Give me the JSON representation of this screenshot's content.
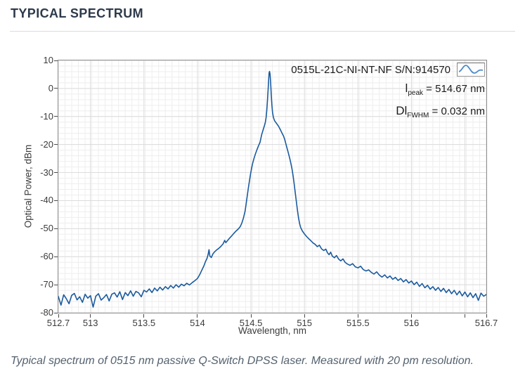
{
  "page": {
    "title": "TYPICAL SPECTRUM",
    "caption": "Typical spectrum of 0515 nm passive Q-Switch DPSS laser. Measured with 20 pm resolution."
  },
  "annotation": {
    "model_line": "0515L-21C-NI-NT-NF  S/N:914570",
    "peak": {
      "symbol": "l",
      "sub": "peak",
      "rest": " = 514.67 nm"
    },
    "fwhm": {
      "symbol": "Dl",
      "sub": "FWHM",
      "rest": " = 0.032 nm"
    },
    "legend_icon": "spectrum-curve-icon"
  },
  "colors": {
    "curve": "#1a5a9e",
    "legend_stroke": "#4f8cc9",
    "grid_minor": "#eeeeee",
    "grid_major": "#dcdcdc",
    "plot_border": "#8e8e8e",
    "title_text": "#2d3a4b",
    "caption_text": "#53616e",
    "tick_text": "#3b3b3b"
  },
  "chart_data": {
    "type": "line",
    "title": "0515L-21C-NI-NT-NF S/N:914570",
    "xlabel": "Wavelength, nm",
    "ylabel": "Optical Power, dBm",
    "xlim": [
      512.7,
      516.7
    ],
    "ylim": [
      -80,
      10
    ],
    "grid": true,
    "legend_position": "top-right",
    "x_minor_step": 0.0625,
    "y_minor_step": 2,
    "x_ticks": [
      {
        "v": 512.7,
        "label": "512.7"
      },
      {
        "v": 513.0,
        "label": "513"
      },
      {
        "v": 513.5,
        "label": "513.5"
      },
      {
        "v": 514.0,
        "label": "514"
      },
      {
        "v": 514.5,
        "label": "514.5"
      },
      {
        "v": 515.0,
        "label": "515"
      },
      {
        "v": 515.5,
        "label": "515.5"
      },
      {
        "v": 516.0,
        "label": "516"
      },
      {
        "v": 516.5,
        "label": ""
      },
      {
        "v": 516.7,
        "label": "516.7"
      }
    ],
    "y_ticks": [
      {
        "v": 10,
        "label": "10"
      },
      {
        "v": 0,
        "label": "0"
      },
      {
        "v": -10,
        "label": "-10"
      },
      {
        "v": -20,
        "label": "-20"
      },
      {
        "v": -30,
        "label": "-30"
      },
      {
        "v": -40,
        "label": "-40"
      },
      {
        "v": -50,
        "label": "-50"
      },
      {
        "v": -60,
        "label": "-60"
      },
      {
        "v": -70,
        "label": "-70"
      },
      {
        "v": -80,
        "label": "-80"
      }
    ],
    "annotations": {
      "lambda_peak_nm": 514.67,
      "delta_lambda_fwhm_nm": 0.032
    },
    "series": [
      {
        "name": "0515L-21C-NI-NT-NF S/N:914570",
        "points": [
          [
            512.7,
            -74.2
          ],
          [
            512.725,
            -77.3
          ],
          [
            512.75,
            -73.6
          ],
          [
            512.775,
            -75.0
          ],
          [
            512.8,
            -76.8
          ],
          [
            512.825,
            -73.8
          ],
          [
            512.85,
            -73.1
          ],
          [
            512.875,
            -75.4
          ],
          [
            512.9,
            -74.3
          ],
          [
            512.925,
            -76.3
          ],
          [
            512.95,
            -73.4
          ],
          [
            512.975,
            -74.8
          ],
          [
            513.0,
            -73.9
          ],
          [
            513.025,
            -78.0
          ],
          [
            513.05,
            -74.1
          ],
          [
            513.075,
            -73.2
          ],
          [
            513.1,
            -75.5
          ],
          [
            513.125,
            -74.6
          ],
          [
            513.15,
            -73.5
          ],
          [
            513.175,
            -75.8
          ],
          [
            513.2,
            -73.4
          ],
          [
            513.225,
            -72.9
          ],
          [
            513.25,
            -74.4
          ],
          [
            513.275,
            -72.5
          ],
          [
            513.3,
            -75.3
          ],
          [
            513.325,
            -72.8
          ],
          [
            513.35,
            -73.9
          ],
          [
            513.375,
            -72.2
          ],
          [
            513.4,
            -74.1
          ],
          [
            513.425,
            -72.4
          ],
          [
            513.45,
            -72.9
          ],
          [
            513.475,
            -74.3
          ],
          [
            513.5,
            -72.0
          ],
          [
            513.525,
            -72.6
          ],
          [
            513.55,
            -71.5
          ],
          [
            513.575,
            -72.8
          ],
          [
            513.6,
            -71.2
          ],
          [
            513.625,
            -72.2
          ],
          [
            513.65,
            -70.9
          ],
          [
            513.675,
            -71.9
          ],
          [
            513.7,
            -70.7
          ],
          [
            513.725,
            -71.5
          ],
          [
            513.75,
            -70.3
          ],
          [
            513.775,
            -71.2
          ],
          [
            513.8,
            -70.0
          ],
          [
            513.825,
            -70.9
          ],
          [
            513.85,
            -69.8
          ],
          [
            513.875,
            -70.4
          ],
          [
            513.9,
            -69.5
          ],
          [
            513.925,
            -70.1
          ],
          [
            513.95,
            -69.3
          ],
          [
            513.975,
            -68.6
          ],
          [
            514.0,
            -67.8
          ],
          [
            514.02,
            -66.5
          ],
          [
            514.04,
            -64.9
          ],
          [
            514.06,
            -63.3
          ],
          [
            514.075,
            -61.8
          ],
          [
            514.09,
            -60.6
          ],
          [
            514.1,
            -59.2
          ],
          [
            514.108,
            -57.5
          ],
          [
            514.116,
            -59.8
          ],
          [
            514.13,
            -60.3
          ],
          [
            514.145,
            -59.0
          ],
          [
            514.16,
            -58.3
          ],
          [
            514.18,
            -57.6
          ],
          [
            514.2,
            -57.0
          ],
          [
            514.22,
            -56.3
          ],
          [
            514.24,
            -55.4
          ],
          [
            514.255,
            -54.2
          ],
          [
            514.265,
            -55.0
          ],
          [
            514.28,
            -54.3
          ],
          [
            514.3,
            -53.4
          ],
          [
            514.32,
            -52.6
          ],
          [
            514.34,
            -51.7
          ],
          [
            514.36,
            -50.9
          ],
          [
            514.38,
            -50.2
          ],
          [
            514.4,
            -49.3
          ],
          [
            514.415,
            -48.0
          ],
          [
            514.43,
            -46.2
          ],
          [
            514.445,
            -43.8
          ],
          [
            514.455,
            -41.2
          ],
          [
            514.465,
            -38.5
          ],
          [
            514.475,
            -35.8
          ],
          [
            514.485,
            -33.2
          ],
          [
            514.495,
            -30.8
          ],
          [
            514.505,
            -28.7
          ],
          [
            514.515,
            -26.9
          ],
          [
            514.525,
            -25.4
          ],
          [
            514.54,
            -23.6
          ],
          [
            514.555,
            -22.0
          ],
          [
            514.57,
            -20.5
          ],
          [
            514.585,
            -19.2
          ],
          [
            514.6,
            -16.5
          ],
          [
            514.615,
            -14.6
          ],
          [
            514.625,
            -13.4
          ],
          [
            514.635,
            -12.0
          ],
          [
            514.642,
            -10.2
          ],
          [
            514.648,
            -7.8
          ],
          [
            514.654,
            -4.5
          ],
          [
            514.66,
            -0.8
          ],
          [
            514.666,
            3.2
          ],
          [
            514.67,
            5.6
          ],
          [
            514.674,
            6.1
          ],
          [
            514.678,
            5.2
          ],
          [
            514.684,
            2.0
          ],
          [
            514.69,
            -2.5
          ],
          [
            514.696,
            -6.0
          ],
          [
            514.702,
            -8.6
          ],
          [
            514.71,
            -10.3
          ],
          [
            514.72,
            -11.4
          ],
          [
            514.732,
            -12.1
          ],
          [
            514.745,
            -12.8
          ],
          [
            514.76,
            -13.6
          ],
          [
            514.775,
            -14.7
          ],
          [
            514.79,
            -15.9
          ],
          [
            514.805,
            -17.0
          ],
          [
            514.815,
            -18.1
          ],
          [
            514.825,
            -19.5
          ],
          [
            514.835,
            -21.0
          ],
          [
            514.845,
            -22.4
          ],
          [
            514.855,
            -23.8
          ],
          [
            514.865,
            -25.3
          ],
          [
            514.875,
            -27.0
          ],
          [
            514.885,
            -29.0
          ],
          [
            514.895,
            -31.5
          ],
          [
            514.905,
            -34.3
          ],
          [
            514.915,
            -37.4
          ],
          [
            514.925,
            -40.6
          ],
          [
            514.935,
            -43.6
          ],
          [
            514.945,
            -46.2
          ],
          [
            514.955,
            -48.2
          ],
          [
            514.965,
            -49.6
          ],
          [
            514.98,
            -50.8
          ],
          [
            515.0,
            -51.9
          ],
          [
            515.02,
            -52.8
          ],
          [
            515.04,
            -53.6
          ],
          [
            515.06,
            -54.3
          ],
          [
            515.08,
            -55.1
          ],
          [
            515.1,
            -55.6
          ],
          [
            515.12,
            -56.4
          ],
          [
            515.14,
            -55.9
          ],
          [
            515.16,
            -57.2
          ],
          [
            515.18,
            -57.8
          ],
          [
            515.2,
            -57.3
          ],
          [
            515.215,
            -58.6
          ],
          [
            515.23,
            -59.3
          ],
          [
            515.245,
            -58.4
          ],
          [
            515.26,
            -59.8
          ],
          [
            515.28,
            -60.4
          ],
          [
            515.3,
            -59.6
          ],
          [
            515.32,
            -60.9
          ],
          [
            515.34,
            -61.5
          ],
          [
            515.36,
            -60.8
          ],
          [
            515.38,
            -62.0
          ],
          [
            515.4,
            -62.6
          ],
          [
            515.425,
            -63.1
          ],
          [
            515.45,
            -62.5
          ],
          [
            515.475,
            -63.6
          ],
          [
            515.5,
            -64.0
          ],
          [
            515.525,
            -63.4
          ],
          [
            515.55,
            -64.6
          ],
          [
            515.575,
            -65.1
          ],
          [
            515.6,
            -64.7
          ],
          [
            515.625,
            -65.6
          ],
          [
            515.65,
            -66.2
          ],
          [
            515.675,
            -65.4
          ],
          [
            515.7,
            -66.6
          ],
          [
            515.725,
            -67.3
          ],
          [
            515.75,
            -66.5
          ],
          [
            515.775,
            -67.6
          ],
          [
            515.8,
            -66.9
          ],
          [
            515.825,
            -68.1
          ],
          [
            515.85,
            -67.4
          ],
          [
            515.875,
            -68.5
          ],
          [
            515.9,
            -67.8
          ],
          [
            515.925,
            -69.0
          ],
          [
            515.95,
            -68.2
          ],
          [
            515.975,
            -69.4
          ],
          [
            516.0,
            -68.7
          ],
          [
            516.025,
            -70.0
          ],
          [
            516.05,
            -69.1
          ],
          [
            516.075,
            -70.6
          ],
          [
            516.1,
            -69.6
          ],
          [
            516.125,
            -71.1
          ],
          [
            516.15,
            -70.2
          ],
          [
            516.175,
            -71.6
          ],
          [
            516.2,
            -70.7
          ],
          [
            516.225,
            -72.0
          ],
          [
            516.25,
            -71.0
          ],
          [
            516.275,
            -72.4
          ],
          [
            516.3,
            -71.3
          ],
          [
            516.325,
            -72.8
          ],
          [
            516.35,
            -71.7
          ],
          [
            516.375,
            -73.2
          ],
          [
            516.4,
            -72.0
          ],
          [
            516.425,
            -73.6
          ],
          [
            516.45,
            -72.3
          ],
          [
            516.475,
            -74.0
          ],
          [
            516.5,
            -72.6
          ],
          [
            516.525,
            -74.3
          ],
          [
            516.55,
            -72.9
          ],
          [
            516.575,
            -74.6
          ],
          [
            516.6,
            -73.2
          ],
          [
            516.625,
            -75.6
          ],
          [
            516.65,
            -73.0
          ],
          [
            516.675,
            -74.1
          ],
          [
            516.7,
            -73.5
          ]
        ]
      }
    ]
  }
}
